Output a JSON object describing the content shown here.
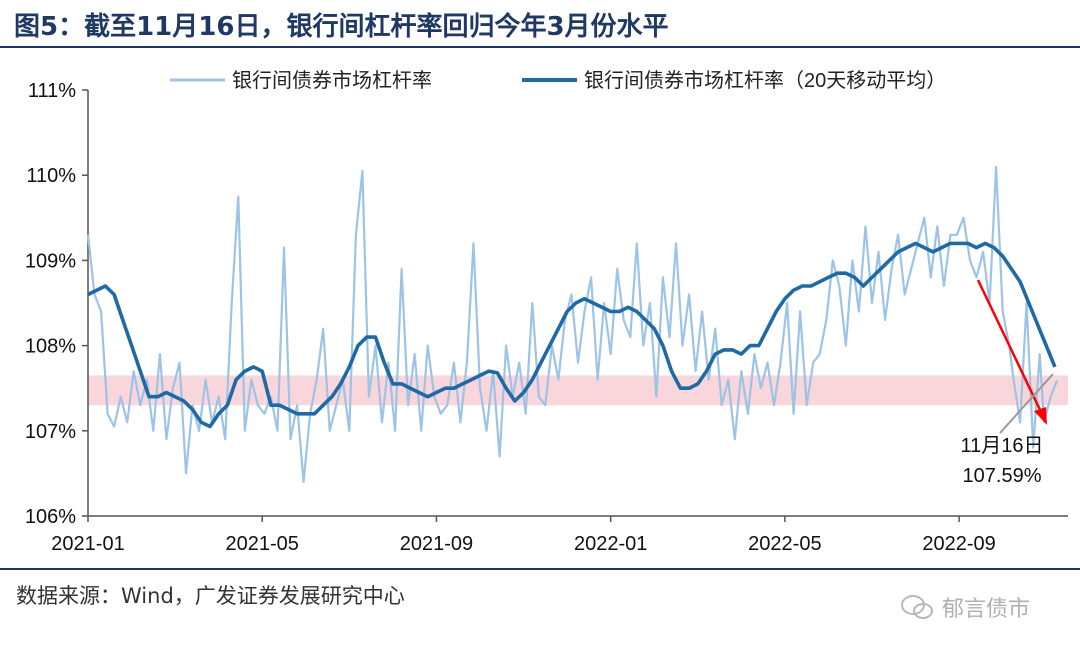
{
  "header": {
    "title": "图5：截至11月16日，银行间杠杆率回归今年3月份水平"
  },
  "footer": {
    "source": "数据来源：Wind，广发证券发展研究中心",
    "watermark": "郁言债市"
  },
  "colors": {
    "raw": "#9dc3e6",
    "avg": "#1f6aa5",
    "band": "#f7c5cc",
    "arrow": "#ff0000",
    "title": "#1f3864"
  },
  "chart_data": {
    "type": "line",
    "title": "截至11月16日，银行间杠杆率回归今年3月份水平",
    "ylim": [
      106,
      111
    ],
    "yticks": [
      "106%",
      "107%",
      "108%",
      "109%",
      "110%",
      "111%"
    ],
    "xticks": [
      "2021-01",
      "2021-05",
      "2021-09",
      "2022-01",
      "2022-05",
      "2022-09"
    ],
    "x_range": [
      0,
      22.5
    ],
    "xtick_positions": [
      0,
      4,
      8,
      12,
      16,
      20
    ],
    "band": [
      107.3,
      107.65
    ],
    "legend": {
      "raw": "银行间债券市场杠杆率",
      "avg": "银行间债券市场杠杆率（20天移动平均）",
      "position": "top"
    },
    "annotation": {
      "date": "11月16日",
      "value": "107.59%"
    },
    "series": [
      {
        "name": "银行间债券市场杠杆率",
        "x": [
          0.0,
          0.15,
          0.3,
          0.45,
          0.6,
          0.75,
          0.9,
          1.05,
          1.2,
          1.35,
          1.5,
          1.65,
          1.8,
          1.95,
          2.1,
          2.25,
          2.4,
          2.55,
          2.7,
          2.85,
          3.0,
          3.15,
          3.3,
          3.45,
          3.6,
          3.75,
          3.9,
          4.05,
          4.2,
          4.35,
          4.5,
          4.65,
          4.8,
          4.95,
          5.1,
          5.25,
          5.4,
          5.55,
          5.7,
          5.85,
          6.0,
          6.15,
          6.3,
          6.45,
          6.6,
          6.75,
          6.9,
          7.05,
          7.2,
          7.35,
          7.5,
          7.65,
          7.8,
          7.95,
          8.1,
          8.25,
          8.4,
          8.55,
          8.7,
          8.85,
          9.0,
          9.15,
          9.3,
          9.45,
          9.6,
          9.75,
          9.9,
          10.05,
          10.2,
          10.35,
          10.5,
          10.65,
          10.8,
          10.95,
          11.1,
          11.25,
          11.4,
          11.55,
          11.7,
          11.85,
          12.0,
          12.15,
          12.3,
          12.45,
          12.6,
          12.75,
          12.9,
          13.05,
          13.2,
          13.35,
          13.5,
          13.65,
          13.8,
          13.95,
          14.1,
          14.25,
          14.4,
          14.55,
          14.7,
          14.85,
          15.0,
          15.15,
          15.3,
          15.45,
          15.6,
          15.75,
          15.9,
          16.05,
          16.2,
          16.35,
          16.5,
          16.65,
          16.8,
          16.95,
          17.1,
          17.25,
          17.4,
          17.55,
          17.7,
          17.85,
          18.0,
          18.15,
          18.3,
          18.45,
          18.6,
          18.75,
          18.9,
          19.05,
          19.2,
          19.35,
          19.5,
          19.65,
          19.8,
          19.95,
          20.1,
          20.25,
          20.4,
          20.55,
          20.7,
          20.85,
          21.0,
          21.15,
          21.25,
          21.4,
          21.55,
          21.7,
          21.85,
          21.95,
          22.1,
          22.25
        ],
        "values": [
          109.3,
          108.6,
          108.4,
          107.2,
          107.05,
          107.4,
          107.1,
          107.7,
          107.3,
          107.6,
          107.0,
          107.9,
          106.9,
          107.5,
          107.8,
          106.5,
          107.3,
          107.0,
          107.6,
          107.1,
          107.4,
          106.9,
          108.5,
          109.75,
          107.0,
          107.6,
          107.3,
          107.2,
          107.4,
          107.0,
          109.15,
          106.9,
          107.3,
          106.4,
          107.2,
          107.6,
          108.2,
          107.0,
          107.3,
          107.6,
          107.0,
          109.3,
          110.05,
          107.4,
          108.0,
          107.1,
          107.8,
          107.0,
          108.9,
          107.3,
          107.9,
          107.0,
          108.0,
          107.4,
          107.2,
          107.3,
          107.8,
          107.1,
          107.8,
          109.2,
          107.5,
          107.0,
          107.7,
          106.7,
          108.0,
          107.4,
          107.8,
          107.2,
          108.5,
          107.4,
          107.3,
          108.0,
          107.6,
          108.3,
          108.6,
          107.8,
          108.4,
          108.8,
          107.6,
          108.5,
          107.9,
          108.9,
          108.3,
          108.1,
          109.2,
          108.0,
          108.5,
          107.4,
          108.8,
          108.1,
          109.2,
          108.0,
          108.6,
          107.7,
          108.4,
          107.6,
          108.2,
          107.3,
          107.6,
          106.9,
          107.7,
          107.2,
          107.9,
          107.5,
          107.8,
          107.3,
          107.8,
          108.5,
          107.2,
          108.4,
          107.3,
          107.8,
          107.9,
          108.3,
          109.0,
          108.7,
          108.0,
          109.0,
          108.4,
          109.4,
          108.5,
          109.1,
          108.3,
          108.9,
          109.3,
          108.6,
          108.9,
          109.2,
          109.5,
          108.8,
          109.4,
          108.7,
          109.3,
          109.3,
          109.5,
          109.0,
          108.8,
          109.1,
          108.5,
          110.1,
          108.4,
          108.0,
          107.6,
          107.1,
          108.5,
          106.8,
          107.9,
          107.1,
          107.4,
          107.59
        ]
      },
      {
        "name": "银行间债券市场杠杆率（20天移动平均）",
        "x": [
          0.0,
          0.2,
          0.4,
          0.6,
          0.8,
          1.0,
          1.2,
          1.4,
          1.6,
          1.8,
          2.0,
          2.2,
          2.4,
          2.6,
          2.8,
          3.0,
          3.2,
          3.4,
          3.6,
          3.8,
          4.0,
          4.2,
          4.4,
          4.6,
          4.8,
          5.0,
          5.2,
          5.4,
          5.6,
          5.8,
          6.0,
          6.2,
          6.4,
          6.6,
          6.8,
          7.0,
          7.2,
          7.4,
          7.6,
          7.8,
          8.0,
          8.2,
          8.4,
          8.6,
          8.8,
          9.0,
          9.2,
          9.4,
          9.6,
          9.8,
          10.0,
          10.2,
          10.4,
          10.6,
          10.8,
          11.0,
          11.2,
          11.4,
          11.6,
          11.8,
          12.0,
          12.2,
          12.4,
          12.6,
          12.8,
          13.0,
          13.2,
          13.4,
          13.6,
          13.8,
          14.0,
          14.2,
          14.4,
          14.6,
          14.8,
          15.0,
          15.2,
          15.4,
          15.6,
          15.8,
          16.0,
          16.2,
          16.4,
          16.6,
          16.8,
          17.0,
          17.2,
          17.4,
          17.6,
          17.8,
          18.0,
          18.2,
          18.4,
          18.6,
          18.8,
          19.0,
          19.2,
          19.4,
          19.6,
          19.8,
          20.0,
          20.2,
          20.4,
          20.6,
          20.8,
          21.0,
          21.2,
          21.4,
          21.6,
          21.8,
          22.0,
          22.2
        ],
        "values": [
          108.6,
          108.65,
          108.7,
          108.6,
          108.3,
          108.0,
          107.7,
          107.4,
          107.4,
          107.45,
          107.4,
          107.35,
          107.25,
          107.1,
          107.05,
          107.2,
          107.3,
          107.6,
          107.7,
          107.75,
          107.7,
          107.3,
          107.3,
          107.25,
          107.2,
          107.2,
          107.2,
          107.3,
          107.4,
          107.55,
          107.75,
          108.0,
          108.1,
          108.1,
          107.8,
          107.55,
          107.55,
          107.5,
          107.45,
          107.4,
          107.45,
          107.5,
          107.5,
          107.55,
          107.6,
          107.65,
          107.7,
          107.68,
          107.5,
          107.35,
          107.45,
          107.6,
          107.8,
          108.0,
          108.2,
          108.4,
          108.5,
          108.55,
          108.5,
          108.45,
          108.4,
          108.4,
          108.45,
          108.4,
          108.3,
          108.2,
          108.0,
          107.7,
          107.5,
          107.5,
          107.55,
          107.7,
          107.9,
          107.95,
          107.95,
          107.9,
          108.0,
          108.0,
          108.2,
          108.4,
          108.55,
          108.65,
          108.7,
          108.7,
          108.75,
          108.8,
          108.85,
          108.85,
          108.8,
          108.7,
          108.8,
          108.9,
          109.0,
          109.1,
          109.15,
          109.2,
          109.15,
          109.1,
          109.15,
          109.2,
          109.2,
          109.2,
          109.15,
          109.2,
          109.15,
          109.05,
          108.9,
          108.75,
          108.5,
          108.25,
          108.0,
          107.75
        ]
      }
    ]
  }
}
